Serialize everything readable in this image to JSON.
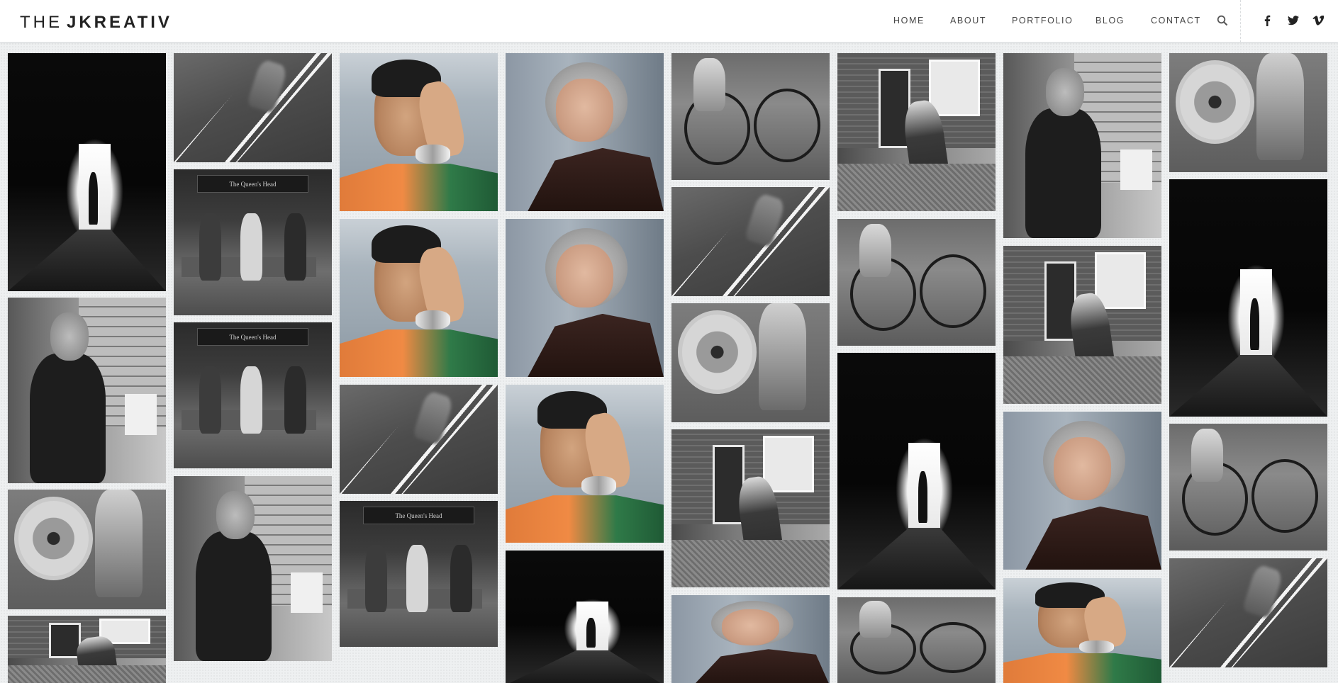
{
  "brand": {
    "prefix": "THE",
    "name": "JKREATIV"
  },
  "nav": {
    "items": [
      {
        "label": "HOME"
      },
      {
        "label": "ABOUT"
      },
      {
        "label": "PORTFOLIO"
      },
      {
        "label": "BLOG"
      },
      {
        "label": "CONTACT"
      }
    ],
    "search_icon": "search-icon",
    "social": [
      "facebook-icon",
      "twitter-icon",
      "vimeo-icon"
    ]
  },
  "gallery": {
    "photo_subjects": [
      "tunnel-silhouette",
      "crossing-walker",
      "phone-man",
      "gray-haired-woman",
      "woman-with-bicycle",
      "kid-with-lamppost",
      "smoking-man",
      "wheel-repair"
    ],
    "sign_text": "The Queen's Head"
  }
}
